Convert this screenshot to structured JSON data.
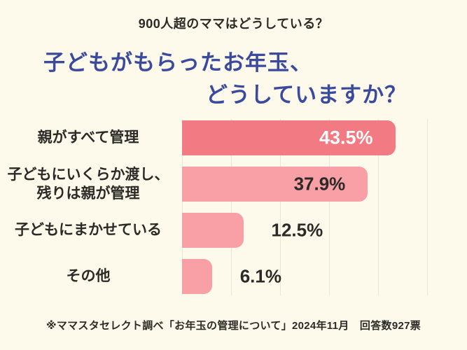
{
  "page": {
    "background_color": "#FDFAEB"
  },
  "header": {
    "kicker": "900人超のママはどうしている？",
    "title_line1": "子どもがもらったお年玉、",
    "title_line2": "どうしていますか？",
    "title_color": "#3B4A9C"
  },
  "chart_data": {
    "type": "bar",
    "orientation": "horizontal",
    "title": "子どもがもらったお年玉、どうしていますか？",
    "categories": [
      "親がすべて管理",
      "子どもにいくらか渡し、\n残りは親が管理",
      "子どもにまかせている",
      "その他"
    ],
    "values": [
      43.5,
      37.9,
      12.5,
      6.1
    ],
    "value_labels": [
      "43.5%",
      "37.9%",
      "12.5%",
      "6.1%"
    ],
    "unit": "%",
    "xlim": [
      0,
      57
    ],
    "grid": true,
    "gridline_interval": 10,
    "gridline_color": "#E9E5D8",
    "bar_colors": [
      "#F27A82",
      "#F9A0A7",
      "#F9A0A7",
      "#F9A0A7"
    ],
    "value_label_inside": [
      true,
      true,
      false,
      false
    ],
    "value_label_colors": [
      "#FFFFFF",
      "#2B2A26",
      "#2B2A26",
      "#2B2A26"
    ]
  },
  "footer": {
    "note": "※ママスタセレクト調べ「お年玉の管理について」2024年11月　回答数927票"
  }
}
